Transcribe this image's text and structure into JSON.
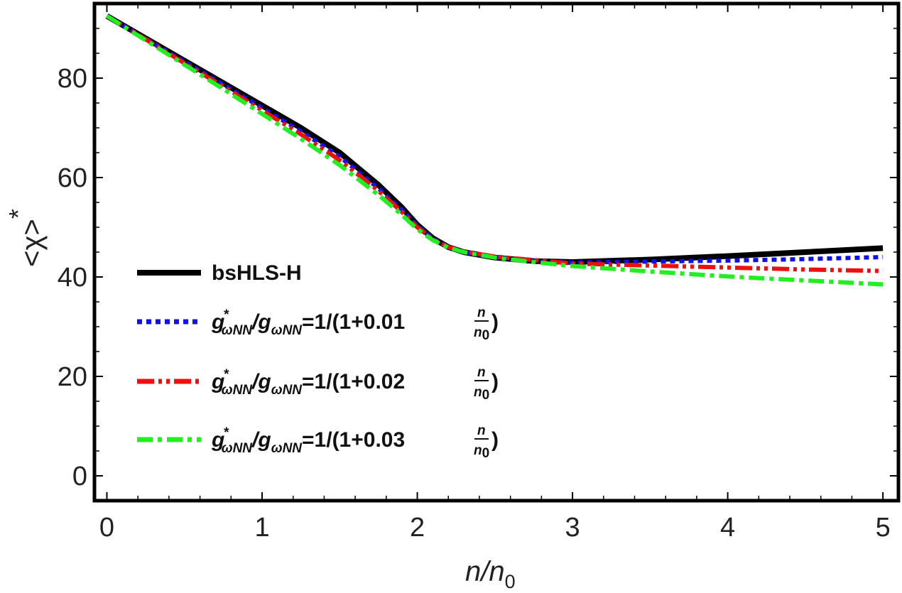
{
  "chart_data": {
    "type": "line",
    "title": "",
    "xlabel": "n/n0",
    "ylabel": "<χ>*",
    "xlim": [
      -0.08,
      5.1
    ],
    "ylim": [
      -5,
      95
    ],
    "xticks": [
      0,
      1,
      2,
      3,
      4,
      5
    ],
    "yticks": [
      0,
      20,
      40,
      60,
      80
    ],
    "grid": false,
    "legend_position": "center-left",
    "series": [
      {
        "name": "bsHLS-H",
        "color": "#000000",
        "style": "solid",
        "x": [
          0,
          0.25,
          0.5,
          0.75,
          1.0,
          1.25,
          1.5,
          1.75,
          1.9,
          2.0,
          2.1,
          2.2,
          2.3,
          2.5,
          2.75,
          3.0,
          3.5,
          4.0,
          4.5,
          5.0
        ],
        "y": [
          92.5,
          88.0,
          83.5,
          79.0,
          74.5,
          70.0,
          65.0,
          58.5,
          54.0,
          50.5,
          47.8,
          46.0,
          45.0,
          43.9,
          43.2,
          43.0,
          43.5,
          44.2,
          45.0,
          45.8
        ]
      },
      {
        "name": "g*ωNN/gωNN=1/(1+0.01 n/n0)",
        "color": "#1010ee",
        "style": "dotted",
        "x": [
          0,
          0.25,
          0.5,
          0.75,
          1.0,
          1.25,
          1.5,
          1.75,
          1.9,
          2.0,
          2.1,
          2.2,
          2.3,
          2.5,
          2.75,
          3.0,
          3.5,
          4.0,
          4.5,
          5.0
        ],
        "y": [
          92.5,
          87.9,
          83.3,
          78.7,
          74.0,
          69.3,
          64.2,
          57.8,
          53.5,
          50.3,
          47.7,
          46.0,
          45.0,
          44.0,
          43.3,
          42.9,
          43.1,
          43.3,
          43.6,
          44.0
        ]
      },
      {
        "name": "g*ωNN/gωNN=1/(1+0.02 n/n0)",
        "color": "#ee1010",
        "style": "dashdotdot",
        "x": [
          0,
          0.25,
          0.5,
          0.75,
          1.0,
          1.25,
          1.5,
          1.75,
          1.9,
          2.0,
          2.1,
          2.2,
          2.3,
          2.5,
          2.75,
          3.0,
          3.5,
          4.0,
          4.5,
          5.0
        ],
        "y": [
          92.5,
          87.8,
          83.0,
          78.3,
          73.5,
          68.7,
          63.5,
          57.3,
          53.1,
          50.0,
          47.6,
          46.0,
          45.1,
          44.1,
          43.4,
          42.7,
          42.3,
          41.9,
          41.5,
          41.2
        ]
      },
      {
        "name": "g*ωNN/gωNN=1/(1+0.03 n/n0)",
        "color": "#22ee22",
        "style": "dashdot",
        "x": [
          0,
          0.25,
          0.5,
          0.75,
          1.0,
          1.25,
          1.5,
          1.75,
          1.9,
          2.0,
          2.1,
          2.2,
          2.3,
          2.5,
          2.75,
          3.0,
          3.5,
          4.0,
          4.5,
          5.0
        ],
        "y": [
          92.5,
          87.6,
          82.7,
          77.8,
          72.8,
          67.8,
          62.5,
          56.5,
          52.5,
          49.6,
          47.4,
          45.9,
          45.0,
          43.9,
          43.0,
          42.2,
          41.1,
          40.1,
          39.3,
          38.5
        ]
      }
    ]
  },
  "legend": {
    "items": [
      {
        "prefix": "bsHLS-H",
        "sup": "",
        "mid_sub": "",
        "mid": "",
        "end_sub": "",
        "coef": "",
        "frac_num": "",
        "frac_den_base": "",
        "frac_den_sub": "",
        "close": ""
      },
      {
        "prefix": "g",
        "sup": "*",
        "mid_sub": "ωNN",
        "mid": "/g",
        "end_sub": "ωNN",
        "coef": "=1/(1+0.01",
        "frac_num": "n",
        "frac_den_base": "n",
        "frac_den_sub": "0",
        "close": ")"
      },
      {
        "prefix": "g",
        "sup": "*",
        "mid_sub": "ωNN",
        "mid": "/g",
        "end_sub": "ωNN",
        "coef": "=1/(1+0.02",
        "frac_num": "n",
        "frac_den_base": "n",
        "frac_den_sub": "0",
        "close": ")"
      },
      {
        "prefix": "g",
        "sup": "*",
        "mid_sub": "ωNN",
        "mid": "/g",
        "end_sub": "ωNN",
        "coef": "=1/(1+0.03",
        "frac_num": "n",
        "frac_den_base": "n",
        "frac_den_sub": "0",
        "close": ")"
      }
    ]
  },
  "axis_labels": {
    "x_main": "n/n",
    "x_sub": "0",
    "y_main": "<χ>",
    "y_sup": "*"
  }
}
